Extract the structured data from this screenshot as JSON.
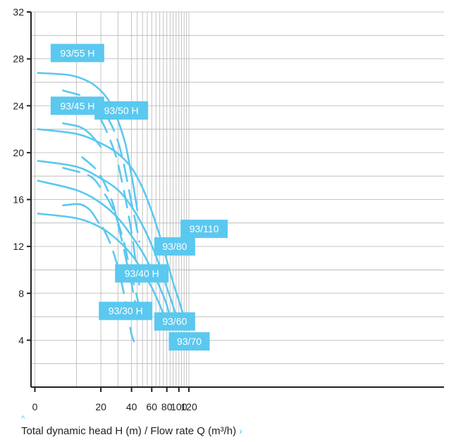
{
  "chart_data": {
    "type": "line",
    "title": "",
    "caption": "Total dynamic head H (m) / Flow rate Q (m³/h)",
    "ylim": [
      0,
      32
    ],
    "y_ticks": [
      "4",
      "8",
      "12",
      "16",
      "20",
      "24",
      "28",
      "32"
    ],
    "x_scale": "logarithmic",
    "x_ticks": [
      "0",
      "20",
      "40",
      "60",
      "80",
      "100",
      "120"
    ],
    "grid": true,
    "series_color": "#5bc8ef",
    "series": [
      {
        "name": "93/55 H",
        "dashed": false,
        "points": [
          [
            0.5,
            26.8
          ],
          [
            8,
            26.6
          ],
          [
            15,
            26.0
          ],
          [
            21,
            25.1
          ],
          [
            26,
            24.0
          ],
          [
            30,
            22.7
          ],
          [
            35,
            20.8
          ],
          [
            39,
            18.6
          ],
          [
            42,
            16.9
          ],
          [
            45,
            15.1
          ]
        ]
      },
      {
        "name": "93/55 H",
        "dashed": true,
        "points": [
          [
            6,
            25.3
          ],
          [
            15,
            24.6
          ],
          [
            21,
            23.6
          ],
          [
            26,
            22.3
          ],
          [
            30,
            20.9
          ],
          [
            34,
            19.0
          ],
          [
            37,
            17.3
          ],
          [
            40,
            15.7
          ],
          [
            43,
            14.3
          ],
          [
            47,
            12.4
          ]
        ]
      },
      {
        "name": "93/45 H",
        "dashed": false,
        "points": [
          [
            6,
            22.5
          ],
          [
            11,
            22.2
          ],
          [
            15,
            21.6
          ],
          [
            20,
            20.5
          ]
        ]
      },
      {
        "name": "93/50 H",
        "dashed": true,
        "points": [
          [
            11,
            24.4
          ],
          [
            17,
            23.6
          ],
          [
            21,
            22.5
          ],
          [
            25,
            21.1
          ],
          [
            29,
            19.5
          ],
          [
            32,
            17.9
          ],
          [
            35,
            16.2
          ],
          [
            38,
            14.4
          ],
          [
            41,
            12.6
          ],
          [
            43,
            11.1
          ],
          [
            45,
            9.8
          ],
          [
            47,
            8.7
          ],
          [
            48,
            8.1
          ]
        ]
      },
      {
        "name": "93/110",
        "dashed": false,
        "points": [
          [
            0.5,
            22.0
          ],
          [
            10,
            21.6
          ],
          [
            20,
            20.8
          ],
          [
            30,
            19.9
          ],
          [
            40,
            18.7
          ],
          [
            50,
            17.0
          ],
          [
            60,
            15.0
          ],
          [
            70,
            12.9
          ],
          [
            80,
            10.8
          ],
          [
            90,
            8.9
          ],
          [
            100,
            7.4
          ],
          [
            110,
            5.9
          ]
        ]
      },
      {
        "name": "93/80",
        "dashed": false,
        "points": [
          [
            0.5,
            19.3
          ],
          [
            10,
            18.8
          ],
          [
            20,
            17.8
          ],
          [
            30,
            16.8
          ],
          [
            40,
            15.4
          ],
          [
            50,
            13.8
          ],
          [
            60,
            12.1
          ],
          [
            70,
            10.3
          ],
          [
            80,
            8.5
          ],
          [
            90,
            6.9
          ],
          [
            98,
            5.5
          ]
        ]
      },
      {
        "name": "93/80",
        "dashed": true,
        "points": [
          [
            6,
            18.7
          ],
          [
            15,
            18.0
          ],
          [
            21,
            16.7
          ],
          [
            26,
            15.4
          ],
          [
            30,
            14.0
          ],
          [
            34,
            12.4
          ],
          [
            37,
            10.9
          ],
          [
            40,
            9.5
          ],
          [
            43,
            8.4
          ],
          [
            46,
            7.2
          ],
          [
            50,
            5.9
          ]
        ]
      },
      {
        "name": "93/70",
        "dashed": false,
        "points": [
          [
            0.5,
            17.6
          ],
          [
            10,
            16.8
          ],
          [
            20,
            15.7
          ],
          [
            30,
            14.4
          ],
          [
            40,
            12.9
          ],
          [
            50,
            11.5
          ],
          [
            60,
            10.0
          ],
          [
            70,
            8.5
          ],
          [
            80,
            7.0
          ],
          [
            87,
            5.4
          ]
        ]
      },
      {
        "name": "93/60",
        "dashed": false,
        "points": [
          [
            0.5,
            14.8
          ],
          [
            10,
            14.4
          ],
          [
            20,
            13.6
          ],
          [
            30,
            12.5
          ],
          [
            40,
            11.3
          ],
          [
            50,
            9.9
          ],
          [
            60,
            8.5
          ],
          [
            70,
            7.0
          ],
          [
            80,
            5.5
          ]
        ]
      },
      {
        "name": "93/40 H",
        "dashed": true,
        "points": [
          [
            12,
            19.6
          ],
          [
            18,
            18.5
          ],
          [
            23,
            17.0
          ],
          [
            27,
            15.5
          ],
          [
            30,
            13.8
          ],
          [
            33,
            12.3
          ],
          [
            36,
            10.7
          ],
          [
            39,
            9.3
          ],
          [
            42,
            7.8
          ],
          [
            44,
            6.8
          ],
          [
            46,
            6.0
          ]
        ]
      },
      {
        "name": "93/40 H",
        "dashed": false,
        "points": [
          [
            6,
            15.5
          ],
          [
            11,
            15.6
          ],
          [
            15,
            15.1
          ],
          [
            19,
            14.0
          ]
        ]
      },
      {
        "name": "93/30 H",
        "dashed": true,
        "points": [
          [
            21,
            13.6
          ],
          [
            25,
            12.3
          ],
          [
            29,
            10.6
          ],
          [
            32,
            9.1
          ],
          [
            35,
            7.4
          ],
          [
            38,
            5.6
          ],
          [
            40,
            4.5
          ],
          [
            42,
            3.9
          ]
        ]
      }
    ],
    "labels": [
      {
        "text": "93/55 H",
        "x": 3,
        "y": 28.5
      },
      {
        "text": "93/45 H",
        "x": 3,
        "y": 24.0
      },
      {
        "text": "93/50 H",
        "x": 17,
        "y": 23.6
      },
      {
        "text": "93/110",
        "x": 103,
        "y": 13.5
      },
      {
        "text": "93/80",
        "x": 63,
        "y": 12.0
      },
      {
        "text": "93/40 H",
        "x": 28,
        "y": 9.7
      },
      {
        "text": "93/30 H",
        "x": 19,
        "y": 6.5
      },
      {
        "text": "93/60",
        "x": 63,
        "y": 5.6
      },
      {
        "text": "93/70",
        "x": 83,
        "y": 3.9
      }
    ]
  }
}
